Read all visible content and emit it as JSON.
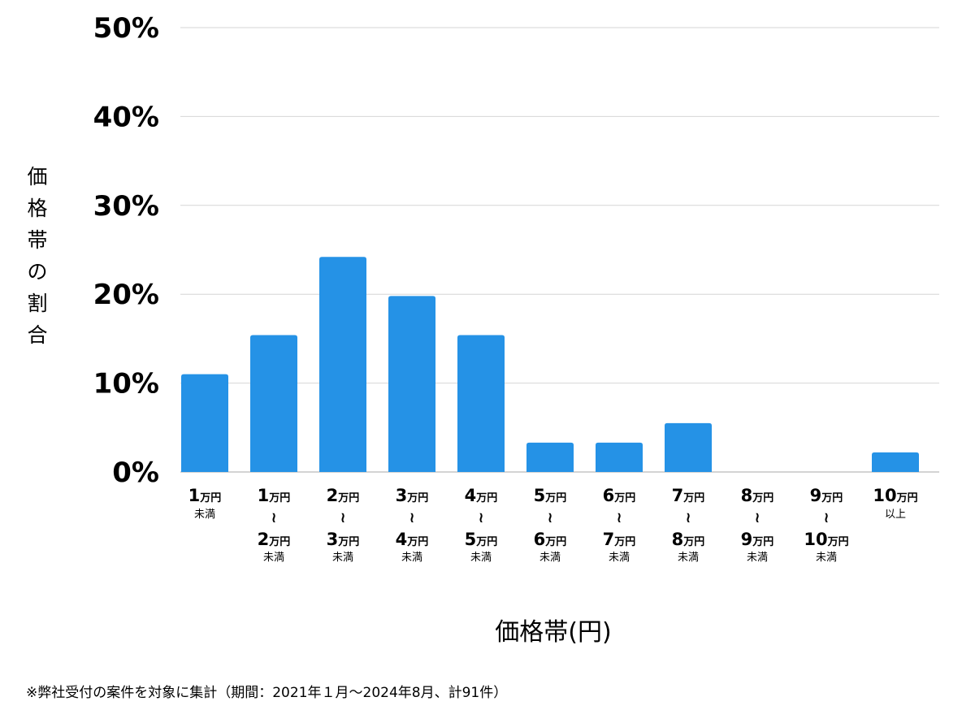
{
  "chart_data": {
    "type": "bar",
    "ylabel": "価格帯の割合",
    "xlabel": "価格帯(円)",
    "ylim": [
      0,
      50
    ],
    "yticks": [
      "0%",
      "10%",
      "20%",
      "30%",
      "40%",
      "50%"
    ],
    "ytick_values": [
      0,
      10,
      20,
      30,
      40,
      50
    ],
    "grid": true,
    "bar_color": "#2592e6",
    "categories": [
      {
        "from": "1",
        "from_unit": "万円",
        "to": "",
        "to_unit": "",
        "note": "未満"
      },
      {
        "from": "1",
        "from_unit": "万円",
        "to": "2",
        "to_unit": "万円",
        "note": "未満"
      },
      {
        "from": "2",
        "from_unit": "万円",
        "to": "3",
        "to_unit": "万円",
        "note": "未満"
      },
      {
        "from": "3",
        "from_unit": "万円",
        "to": "4",
        "to_unit": "万円",
        "note": "未満"
      },
      {
        "from": "4",
        "from_unit": "万円",
        "to": "5",
        "to_unit": "万円",
        "note": "未満"
      },
      {
        "from": "5",
        "from_unit": "万円",
        "to": "6",
        "to_unit": "万円",
        "note": "未満"
      },
      {
        "from": "6",
        "from_unit": "万円",
        "to": "7",
        "to_unit": "万円",
        "note": "未満"
      },
      {
        "from": "7",
        "from_unit": "万円",
        "to": "8",
        "to_unit": "万円",
        "note": "未満"
      },
      {
        "from": "8",
        "from_unit": "万円",
        "to": "9",
        "to_unit": "万円",
        "note": "未満"
      },
      {
        "from": "9",
        "from_unit": "万円",
        "to": "10",
        "to_unit": "万円",
        "note": "未満"
      },
      {
        "from": "10",
        "from_unit": "万円",
        "to": "",
        "to_unit": "",
        "note": "以上"
      }
    ],
    "range_symbol": "≀",
    "values": [
      11.0,
      15.4,
      24.2,
      19.8,
      15.4,
      3.3,
      3.3,
      5.5,
      0,
      0,
      2.2
    ]
  },
  "footnote": "※弊社受付の案件を対象に集計（期間：2021年１月〜2024年8月、計91件）"
}
